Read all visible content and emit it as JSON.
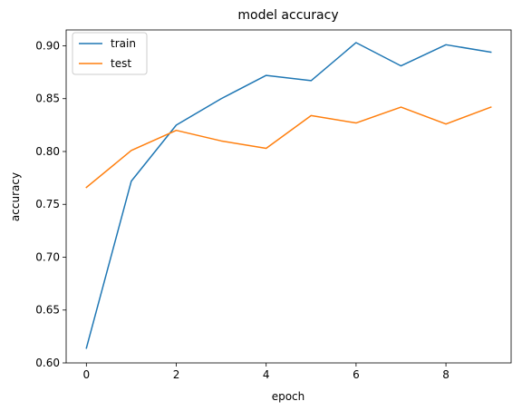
{
  "chart_data": {
    "type": "line",
    "title": "model accuracy",
    "xlabel": "epoch",
    "ylabel": "accuracy",
    "x": [
      0,
      1,
      2,
      3,
      4,
      5,
      6,
      7,
      8,
      9
    ],
    "xlim": [
      -0.45,
      9.45
    ],
    "ylim": [
      0.6,
      0.915
    ],
    "xticks": [
      0,
      2,
      4,
      6,
      8
    ],
    "yticks": [
      0.6,
      0.65,
      0.7,
      0.75,
      0.8,
      0.85,
      0.9
    ],
    "grid": false,
    "legend_position": "top-left",
    "series": [
      {
        "name": "train",
        "color": "#1f77b4",
        "values": [
          0.614,
          0.772,
          0.825,
          0.85,
          0.872,
          0.867,
          0.903,
          0.881,
          0.901,
          0.894
        ]
      },
      {
        "name": "test",
        "color": "#ff7f0e",
        "values": [
          0.766,
          0.801,
          0.82,
          0.81,
          0.803,
          0.834,
          0.827,
          0.842,
          0.826,
          0.842
        ]
      }
    ]
  }
}
